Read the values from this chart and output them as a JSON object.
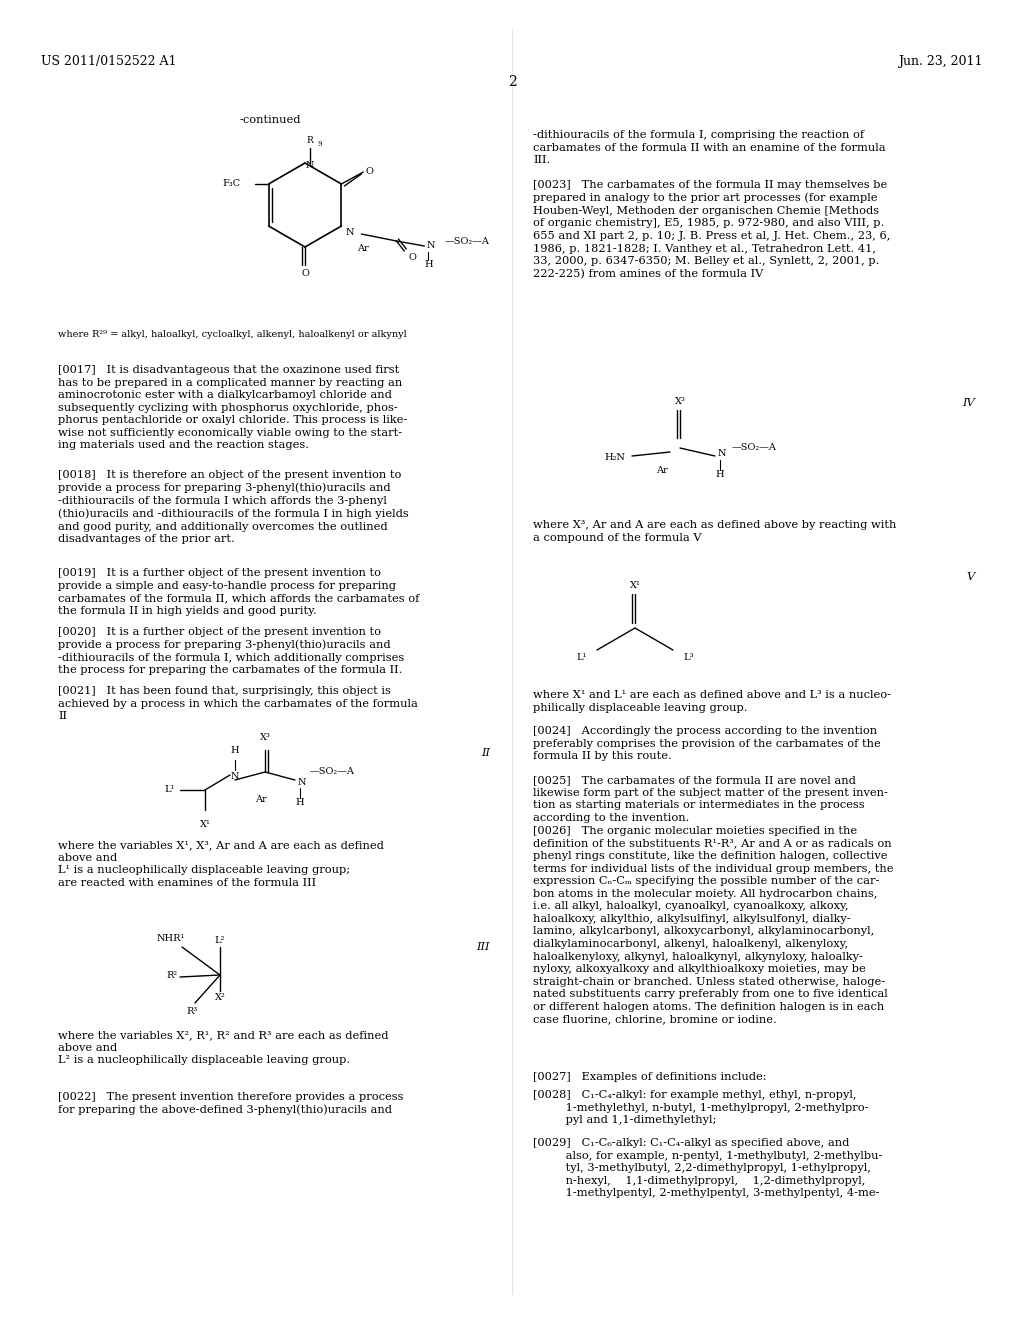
{
  "bg_color": "#ffffff",
  "header_left": "US 2011/0152522 A1",
  "header_right": "Jun. 23, 2011",
  "page_number": "2",
  "font_size_body": 8.2,
  "font_size_header": 9.0,
  "font_size_small": 6.5
}
